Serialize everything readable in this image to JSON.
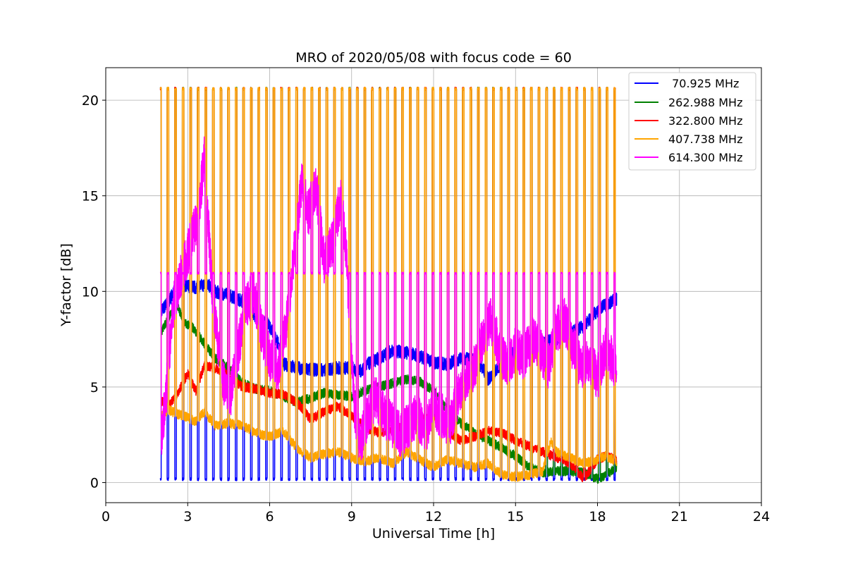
{
  "chart_data": {
    "type": "line",
    "title": "MRO of 2020/05/08 with focus code = 60",
    "xlabel": "Universal Time [h]",
    "ylabel": "Y-factor [dB]",
    "xlim": [
      0,
      24
    ],
    "ylim": [
      -1.05,
      21.7
    ],
    "xticks": [
      0,
      3,
      6,
      9,
      12,
      15,
      18,
      21,
      24
    ],
    "xtick_labels": [
      "0",
      "3",
      "6",
      "9",
      "12",
      "15",
      "18",
      "21",
      "24"
    ],
    "yticks": [
      0,
      5,
      10,
      15,
      20
    ],
    "ytick_labels": [
      "0",
      "5",
      "10",
      "15",
      "20"
    ],
    "grid": true,
    "legend_position": "top-right",
    "calibration_spikes": {
      "start": 1.97,
      "end": 18.6,
      "count": 61,
      "peak_db": 20.6,
      "plateau_614_db": 10.9
    },
    "series": [
      {
        "name": " 70.925 MHz",
        "color": "#0000ff",
        "x": [
          2.0,
          2.3,
          2.6,
          3.0,
          3.3,
          3.7,
          4.0,
          4.5,
          5.0,
          5.5,
          6.0,
          6.3,
          6.5,
          7.0,
          7.5,
          8.0,
          8.5,
          9.0,
          9.3,
          9.6,
          10.0,
          10.5,
          11.0,
          11.5,
          12.0,
          12.5,
          13.0,
          13.5,
          13.8,
          14.0,
          14.3,
          14.6,
          15.0,
          15.5,
          16.0,
          16.5,
          17.0,
          17.5,
          18.0,
          18.3,
          18.7
        ],
        "y": [
          8.9,
          9.5,
          10.2,
          10.3,
          10.2,
          10.4,
          10.0,
          9.8,
          9.5,
          8.7,
          8.2,
          7.3,
          6.2,
          6.0,
          5.9,
          5.9,
          6.0,
          6.0,
          5.8,
          6.2,
          6.5,
          6.9,
          6.8,
          6.6,
          6.3,
          6.2,
          6.5,
          6.4,
          6.0,
          5.4,
          5.9,
          6.5,
          6.8,
          7.0,
          7.3,
          7.5,
          7.8,
          8.2,
          9.0,
          9.3,
          9.6
        ]
      },
      {
        "name": "262.988 MHz",
        "color": "#008000",
        "x": [
          2.0,
          2.3,
          2.6,
          2.9,
          3.2,
          3.5,
          4.0,
          4.5,
          5.0,
          5.5,
          6.0,
          6.5,
          7.0,
          7.5,
          8.0,
          8.5,
          9.0,
          9.5,
          10.0,
          10.5,
          11.0,
          11.5,
          12.0,
          12.5,
          13.0,
          13.5,
          14.0,
          14.5,
          15.0,
          15.5,
          16.0,
          16.5,
          17.0,
          17.5,
          18.0,
          18.3,
          18.7
        ],
        "y": [
          7.8,
          8.6,
          9.3,
          8.3,
          8.1,
          7.5,
          6.5,
          6.0,
          5.2,
          4.9,
          4.8,
          4.5,
          4.2,
          4.4,
          4.7,
          4.6,
          4.5,
          4.8,
          5.0,
          5.2,
          5.4,
          5.3,
          4.8,
          3.8,
          3.1,
          2.6,
          2.2,
          1.8,
          1.4,
          0.8,
          0.5,
          0.6,
          0.6,
          0.5,
          0.2,
          0.4,
          0.8
        ]
      },
      {
        "name": "322.800 MHz",
        "color": "#ff0000",
        "x": [
          2.0,
          2.3,
          2.6,
          3.0,
          3.3,
          3.6,
          4.0,
          4.5,
          5.0,
          5.5,
          6.0,
          6.5,
          7.0,
          7.5,
          8.0,
          8.5,
          9.0,
          9.5,
          10.0,
          10.5,
          11.0,
          11.5,
          12.0,
          12.5,
          13.0,
          13.5,
          14.0,
          14.5,
          15.0,
          15.5,
          16.0,
          16.5,
          17.0,
          17.5,
          18.0,
          18.3,
          18.7
        ],
        "y": [
          4.3,
          4.0,
          4.6,
          5.7,
          4.8,
          6.1,
          6.0,
          5.6,
          5.0,
          4.9,
          4.7,
          4.6,
          4.2,
          3.3,
          3.7,
          4.0,
          3.5,
          2.9,
          2.6,
          2.8,
          3.0,
          3.2,
          3.5,
          2.7,
          2.2,
          2.4,
          2.7,
          2.6,
          2.2,
          1.9,
          1.6,
          1.3,
          1.0,
          0.2,
          1.2,
          1.4,
          1.2
        ]
      },
      {
        "name": "407.738 MHz",
        "color": "#ffa500",
        "x": [
          2.0,
          2.3,
          2.6,
          3.0,
          3.3,
          3.6,
          4.0,
          4.5,
          5.0,
          5.5,
          6.0,
          6.5,
          7.0,
          7.5,
          8.0,
          8.5,
          9.0,
          9.5,
          10.0,
          10.5,
          11.0,
          11.5,
          12.0,
          12.5,
          13.0,
          13.5,
          14.0,
          14.5,
          15.0,
          15.5,
          16.0,
          16.3,
          16.5,
          17.0,
          17.5,
          18.0,
          18.3,
          18.7
        ],
        "y": [
          3.5,
          3.8,
          3.6,
          3.4,
          3.2,
          3.7,
          3.0,
          3.1,
          3.0,
          2.6,
          2.4,
          2.7,
          1.8,
          1.3,
          1.5,
          1.6,
          1.3,
          1.1,
          1.3,
          1.0,
          1.6,
          1.2,
          0.8,
          1.2,
          1.0,
          0.8,
          1.0,
          0.4,
          0.3,
          0.4,
          0.6,
          2.2,
          1.6,
          1.3,
          1.0,
          1.2,
          1.4,
          1.1
        ]
      },
      {
        "name": "614.300 MHz",
        "color": "#ff00ff",
        "x": [
          2.0,
          2.2,
          2.5,
          2.8,
          3.1,
          3.4,
          3.6,
          3.9,
          4.2,
          4.5,
          4.8,
          5.1,
          5.4,
          5.7,
          6.0,
          6.3,
          6.6,
          6.9,
          7.2,
          7.4,
          7.7,
          8.0,
          8.3,
          8.6,
          8.8,
          9.1,
          9.3,
          9.6,
          9.9,
          10.2,
          10.5,
          10.8,
          11.1,
          11.4,
          11.7,
          12.0,
          12.3,
          12.6,
          12.9,
          13.2,
          13.5,
          13.8,
          14.1,
          14.4,
          14.7,
          15.0,
          15.3,
          15.6,
          15.9,
          16.2,
          16.5,
          16.8,
          17.1,
          17.4,
          17.7,
          18.0,
          18.3,
          18.7
        ],
        "y": [
          2.0,
          4.5,
          9.5,
          11.0,
          12.5,
          14.0,
          17.0,
          10.0,
          6.0,
          4.0,
          6.5,
          9.0,
          10.0,
          8.0,
          6.5,
          6.0,
          8.0,
          12.0,
          16.0,
          14.0,
          15.5,
          11.5,
          12.5,
          15.0,
          12.0,
          4.0,
          2.0,
          3.5,
          4.5,
          3.5,
          3.0,
          2.5,
          3.0,
          3.5,
          2.5,
          4.0,
          3.5,
          3.0,
          4.5,
          5.5,
          6.0,
          7.5,
          8.5,
          7.0,
          6.0,
          7.0,
          6.5,
          7.5,
          7.0,
          6.0,
          8.0,
          8.5,
          7.0,
          6.0,
          6.5,
          5.5,
          7.0,
          6.0
        ]
      }
    ]
  }
}
